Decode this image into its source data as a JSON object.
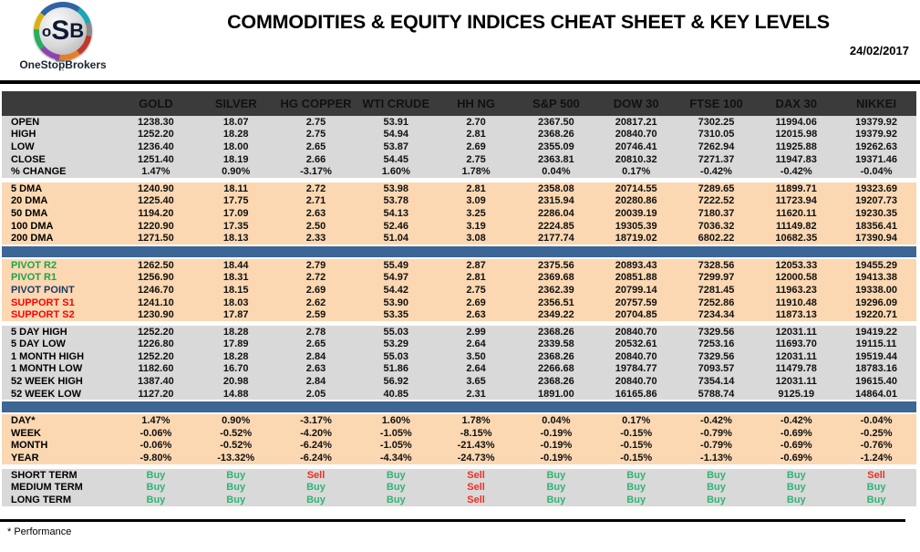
{
  "header": {
    "logo": {
      "letter_o": "o",
      "letter_s": "S",
      "letter_b": "B",
      "brand": "OneStopBrokers"
    },
    "title": "COMMODITIES & EQUITY INDICES CHEAT SHEET & KEY LEVELS",
    "date": "24/02/2017"
  },
  "colors": {
    "header_bar": "#3b3b3b",
    "gray_section": "#d9d9d9",
    "peach_section": "#fbd8b2",
    "blue_divider": "#3c6695",
    "pivot_green": "#1ca24d",
    "pivot_navy": "#1f3864",
    "support_red": "#fe0000",
    "buy_green": "#2eb573",
    "sell_red": "#ee2e24"
  },
  "table": {
    "columns": [
      "GOLD",
      "SILVER",
      "HG COPPER",
      "WTI CRUDE",
      "HH NG",
      "S&P 500",
      "DOW 30",
      "FTSE 100",
      "DAX 30",
      "NIKKEI"
    ],
    "sections": [
      {
        "name": "ohlc",
        "bg": "gray",
        "after": "gap",
        "rows": [
          {
            "label": "OPEN",
            "values": [
              "1238.30",
              "18.07",
              "2.75",
              "53.91",
              "2.70",
              "2367.50",
              "20817.21",
              "7302.25",
              "11994.06",
              "19379.92"
            ]
          },
          {
            "label": "HIGH",
            "values": [
              "1252.20",
              "18.28",
              "2.75",
              "54.94",
              "2.81",
              "2368.26",
              "20840.70",
              "7310.05",
              "12015.98",
              "19379.92"
            ]
          },
          {
            "label": "LOW",
            "values": [
              "1236.40",
              "18.00",
              "2.65",
              "53.87",
              "2.69",
              "2355.09",
              "20746.41",
              "7262.94",
              "11925.88",
              "19262.63"
            ]
          },
          {
            "label": "CLOSE",
            "values": [
              "1251.40",
              "18.19",
              "2.66",
              "54.45",
              "2.75",
              "2363.81",
              "20810.32",
              "7271.37",
              "11947.83",
              "19371.46"
            ]
          },
          {
            "label": "% CHANGE",
            "values": [
              "1.47%",
              "0.90%",
              "-3.17%",
              "1.60%",
              "1.78%",
              "0.04%",
              "0.17%",
              "-0.42%",
              "-0.42%",
              "-0.04%"
            ]
          }
        ]
      },
      {
        "name": "moving-averages",
        "bg": "peach",
        "after": "bar",
        "rows": [
          {
            "label": "5 DMA",
            "values": [
              "1240.90",
              "18.11",
              "2.72",
              "53.98",
              "2.81",
              "2358.08",
              "20714.55",
              "7289.65",
              "11899.71",
              "19323.69"
            ]
          },
          {
            "label": "20 DMA",
            "values": [
              "1225.40",
              "17.75",
              "2.71",
              "53.78",
              "3.09",
              "2315.94",
              "20280.86",
              "7222.52",
              "11723.94",
              "19207.73"
            ]
          },
          {
            "label": "50 DMA",
            "values": [
              "1194.20",
              "17.09",
              "2.63",
              "54.13",
              "3.25",
              "2286.04",
              "20039.19",
              "7180.37",
              "11620.11",
              "19230.35"
            ]
          },
          {
            "label": "100 DMA",
            "values": [
              "1220.90",
              "17.35",
              "2.50",
              "52.46",
              "3.19",
              "2224.85",
              "19305.39",
              "7036.32",
              "11149.82",
              "18356.41"
            ]
          },
          {
            "label": "200 DMA",
            "values": [
              "1271.50",
              "18.13",
              "2.33",
              "51.04",
              "3.08",
              "2177.74",
              "18719.02",
              "6802.22",
              "10682.35",
              "17390.94"
            ]
          }
        ]
      },
      {
        "name": "pivots",
        "bg": "peach",
        "after": "gap",
        "rows": [
          {
            "label": "PIVOT R2",
            "color": "green",
            "values": [
              "1262.50",
              "18.44",
              "2.79",
              "55.49",
              "2.87",
              "2375.56",
              "20893.43",
              "7328.56",
              "12053.33",
              "19455.29"
            ]
          },
          {
            "label": "PIVOT R1",
            "color": "green",
            "values": [
              "1256.90",
              "18.31",
              "2.72",
              "54.97",
              "2.81",
              "2369.68",
              "20851.88",
              "7299.97",
              "12000.58",
              "19413.38"
            ]
          },
          {
            "label": "PIVOT POINT",
            "color": "navy",
            "values": [
              "1246.70",
              "18.15",
              "2.69",
              "54.42",
              "2.75",
              "2362.39",
              "20799.14",
              "7281.45",
              "11963.23",
              "19338.00"
            ]
          },
          {
            "label": "SUPPORT S1",
            "color": "red",
            "values": [
              "1241.10",
              "18.03",
              "2.62",
              "53.90",
              "2.69",
              "2356.51",
              "20757.59",
              "7252.86",
              "11910.48",
              "19296.09"
            ]
          },
          {
            "label": "SUPPORT S2",
            "color": "red",
            "values": [
              "1230.90",
              "17.87",
              "2.59",
              "53.35",
              "2.63",
              "2349.22",
              "20704.85",
              "7234.34",
              "11873.13",
              "19220.71"
            ]
          }
        ]
      },
      {
        "name": "ranges",
        "bg": "gray",
        "after": "bar",
        "rows": [
          {
            "label": "5 DAY HIGH",
            "values": [
              "1252.20",
              "18.28",
              "2.78",
              "55.03",
              "2.99",
              "2368.26",
              "20840.70",
              "7329.56",
              "12031.11",
              "19419.22"
            ]
          },
          {
            "label": "5 DAY LOW",
            "values": [
              "1226.80",
              "17.89",
              "2.65",
              "53.29",
              "2.64",
              "2339.58",
              "20532.61",
              "7253.16",
              "11693.70",
              "19115.11"
            ]
          },
          {
            "label": "1 MONTH HIGH",
            "values": [
              "1252.20",
              "18.28",
              "2.84",
              "55.03",
              "3.50",
              "2368.26",
              "20840.70",
              "7329.56",
              "12031.11",
              "19519.44"
            ]
          },
          {
            "label": "1 MONTH LOW",
            "values": [
              "1182.60",
              "16.70",
              "2.63",
              "51.86",
              "2.64",
              "2266.68",
              "19784.77",
              "7093.57",
              "11479.78",
              "18783.16"
            ]
          },
          {
            "label": "52 WEEK HIGH",
            "values": [
              "1387.40",
              "20.98",
              "2.84",
              "56.92",
              "3.65",
              "2368.26",
              "20840.70",
              "7354.14",
              "12031.11",
              "19615.40"
            ]
          },
          {
            "label": "52 WEEK LOW",
            "values": [
              "1127.20",
              "14.88",
              "2.05",
              "40.85",
              "2.31",
              "1891.00",
              "16165.86",
              "5788.74",
              "9125.19",
              "14864.01"
            ]
          }
        ]
      },
      {
        "name": "performance",
        "bg": "peach",
        "after": "gap",
        "rows": [
          {
            "label": "DAY*",
            "values": [
              "1.47%",
              "0.90%",
              "-3.17%",
              "1.60%",
              "1.78%",
              "0.04%",
              "0.17%",
              "-0.42%",
              "-0.42%",
              "-0.04%"
            ]
          },
          {
            "label": "WEEK",
            "values": [
              "-0.06%",
              "-0.52%",
              "-4.20%",
              "-1.05%",
              "-8.15%",
              "-0.19%",
              "-0.15%",
              "-0.79%",
              "-0.69%",
              "-0.25%"
            ]
          },
          {
            "label": "MONTH",
            "values": [
              "-0.06%",
              "-0.52%",
              "-6.24%",
              "-1.05%",
              "-21.43%",
              "-0.19%",
              "-0.15%",
              "-0.79%",
              "-0.69%",
              "-0.76%"
            ]
          },
          {
            "label": "YEAR",
            "values": [
              "-9.80%",
              "-13.32%",
              "-6.24%",
              "-4.34%",
              "-24.73%",
              "-0.19%",
              "-0.15%",
              "-1.13%",
              "-0.69%",
              "-1.24%"
            ]
          }
        ]
      },
      {
        "name": "signals",
        "bg": "gray",
        "after": "none",
        "rows": [
          {
            "label": "SHORT TERM",
            "values": [
              "Buy",
              "Buy",
              "Sell",
              "Buy",
              "Sell",
              "Buy",
              "Buy",
              "Buy",
              "Buy",
              "Sell"
            ]
          },
          {
            "label": "MEDIUM TERM",
            "values": [
              "Buy",
              "Buy",
              "Buy",
              "Buy",
              "Sell",
              "Buy",
              "Buy",
              "Buy",
              "Buy",
              "Buy"
            ]
          },
          {
            "label": "LONG TERM",
            "values": [
              "Buy",
              "Buy",
              "Buy",
              "Buy",
              "Sell",
              "Buy",
              "Buy",
              "Buy",
              "Buy",
              "Buy"
            ]
          }
        ]
      }
    ]
  },
  "footer": {
    "note": "* Performance"
  }
}
